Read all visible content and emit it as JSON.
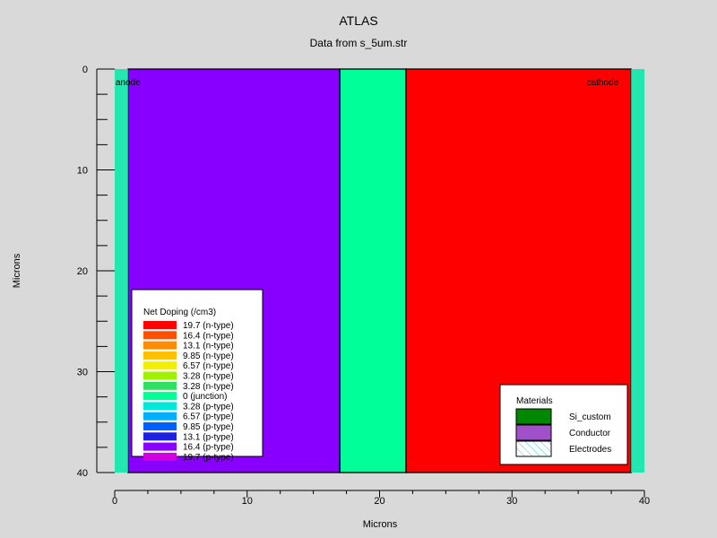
{
  "chart_data": {
    "type": "heatmap",
    "title": "ATLAS",
    "subtitle": "Data from s_5um.str",
    "xlabel": "Microns",
    "ylabel": "Microns",
    "xlim": [
      0,
      40
    ],
    "ylim": [
      0,
      40
    ],
    "y_inverted": true,
    "x_ticks": [
      0,
      10,
      20,
      30,
      40
    ],
    "y_ticks": [
      0,
      10,
      20,
      30,
      40
    ],
    "regions": [
      {
        "name": "p-region",
        "x0": 1,
        "x1": 17,
        "y0": 0,
        "y1": 40,
        "color": "#8800ff"
      },
      {
        "name": "junction-region",
        "x0": 17,
        "x1": 22,
        "y0": 0,
        "y1": 40,
        "color": "#00ff99"
      },
      {
        "name": "n-region",
        "x0": 22,
        "x1": 39,
        "y0": 0,
        "y1": 40,
        "color": "#ff0000"
      }
    ],
    "electrodes": [
      {
        "label": "anode",
        "x0": 0,
        "x1": 1,
        "y0": 0,
        "y1": 40,
        "color": "#22e8b0"
      },
      {
        "label": "cathode",
        "x0": 39,
        "x1": 40,
        "y0": 0,
        "y1": 40,
        "color": "#22e8b0"
      }
    ],
    "doping_legend": {
      "title": "Net Doping (/cm3)",
      "entries": [
        {
          "label": "19.7 (n-type)",
          "color": "#ff0000"
        },
        {
          "label": "16.4 (n-type)",
          "color": "#ff5000"
        },
        {
          "label": "13.1 (n-type)",
          "color": "#ff8c00"
        },
        {
          "label": "9.85 (n-type)",
          "color": "#ffc000"
        },
        {
          "label": "6.57 (n-type)",
          "color": "#f0f000"
        },
        {
          "label": "3.28 (n-type)",
          "color": "#a0f000"
        },
        {
          "label": "3.28 (n-type)",
          "color": "#30e060"
        },
        {
          "label": "0 (junction)",
          "color": "#00ff99"
        },
        {
          "label": "3.28 (p-type)",
          "color": "#00e8d8"
        },
        {
          "label": "6.57 (p-type)",
          "color": "#00b0ff"
        },
        {
          "label": "9.85 (p-type)",
          "color": "#0060ff"
        },
        {
          "label": "13.1 (p-type)",
          "color": "#2020e0"
        },
        {
          "label": "16.4 (p-type)",
          "color": "#8800ff"
        },
        {
          "label": "19.7 (p-type)",
          "color": "#d000e0"
        }
      ]
    },
    "materials_legend": {
      "title": "Materials",
      "entries": [
        {
          "label": "Si_custom",
          "color": "#008800",
          "pattern": "solid"
        },
        {
          "label": "Conductor",
          "color": "#a050c8",
          "pattern": "solid"
        },
        {
          "label": "Electrodes",
          "color": "#22cccc",
          "pattern": "hatch"
        }
      ]
    }
  }
}
